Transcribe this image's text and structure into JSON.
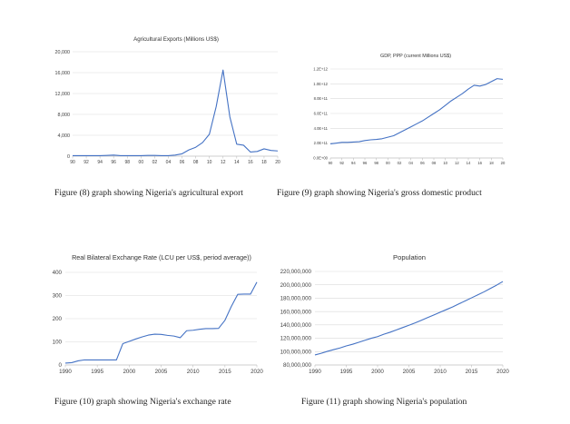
{
  "captions": {
    "fig8": "Figure (8) graph showing Nigeria's agricultural export",
    "fig9": "Figure (9) graph showing Nigeria's gross domestic product",
    "fig10": "Figure (10) graph showing Nigeria's exchange rate",
    "fig11": "Figure (11) graph showing Nigeria's population"
  },
  "line_color": "#4472c4",
  "chart_data": [
    {
      "id": "agri",
      "type": "line",
      "title": "Agricultural Exports (Millions US$)",
      "xlabel": "",
      "ylabel": "",
      "ylim": [
        0,
        20000
      ],
      "y_ticks": [
        0,
        4000,
        8000,
        12000,
        16000,
        20000
      ],
      "y_tick_labels": [
        "0",
        "4,000",
        "8,000",
        "12,000",
        "16,000",
        "20,000"
      ],
      "x_ticks": [
        1990,
        1992,
        1994,
        1996,
        1998,
        2000,
        2002,
        2004,
        2006,
        2008,
        2010,
        2012,
        2014,
        2016,
        2018,
        2020
      ],
      "x_tick_labels": [
        "90",
        "92",
        "94",
        "96",
        "98",
        "00",
        "02",
        "04",
        "06",
        "08",
        "10",
        "12",
        "14",
        "16",
        "18",
        "20"
      ],
      "grid": "horizontal",
      "x": [
        1990,
        1991,
        1992,
        1993,
        1994,
        1995,
        1996,
        1997,
        1998,
        1999,
        2000,
        2001,
        2002,
        2003,
        2004,
        2005,
        2006,
        2007,
        2008,
        2009,
        2010,
        2011,
        2012,
        2013,
        2014,
        2015,
        2016,
        2017,
        2018,
        2019,
        2020
      ],
      "values": [
        100,
        100,
        100,
        100,
        100,
        150,
        200,
        100,
        100,
        100,
        100,
        150,
        150,
        100,
        100,
        200,
        450,
        1200,
        1700,
        2600,
        4200,
        9500,
        16500,
        7500,
        2300,
        2100,
        800,
        900,
        1400,
        1100,
        1000
      ]
    },
    {
      "id": "gdp",
      "type": "line",
      "title": "GDP, PPP (current Millions US$)",
      "xlabel": "",
      "ylabel": "",
      "ylim": [
        0,
        1200000000000.0
      ],
      "y_ticks": [
        0,
        200000000000.0,
        400000000000.0,
        600000000000.0,
        800000000000.0,
        1000000000000.0,
        1200000000000.0
      ],
      "y_tick_labels": [
        "0.0E+00",
        "2.0E+11",
        "4.0E+11",
        "6.0E+11",
        "8.0E+11",
        "1.0E+12",
        "1.2E+12"
      ],
      "x_ticks": [
        1990,
        1992,
        1994,
        1996,
        1998,
        2000,
        2002,
        2004,
        2006,
        2008,
        2010,
        2012,
        2014,
        2016,
        2018,
        2020
      ],
      "x_tick_labels": [
        "90",
        "92",
        "94",
        "96",
        "98",
        "00",
        "02",
        "04",
        "06",
        "08",
        "10",
        "12",
        "14",
        "16",
        "18",
        "20"
      ],
      "grid": "horizontal",
      "x": [
        1990,
        1991,
        1992,
        1993,
        1994,
        1995,
        1996,
        1997,
        1998,
        1999,
        2000,
        2001,
        2002,
        2003,
        2004,
        2005,
        2006,
        2007,
        2008,
        2009,
        2010,
        2011,
        2012,
        2013,
        2014,
        2015,
        2016,
        2017,
        2018,
        2019,
        2020
      ],
      "values": [
        190000000000.0,
        200000000000.0,
        210000000000.0,
        210000000000.0,
        215000000000.0,
        220000000000.0,
        235000000000.0,
        245000000000.0,
        250000000000.0,
        260000000000.0,
        280000000000.0,
        300000000000.0,
        340000000000.0,
        380000000000.0,
        420000000000.0,
        460000000000.0,
        500000000000.0,
        550000000000.0,
        600000000000.0,
        650000000000.0,
        710000000000.0,
        770000000000.0,
        820000000000.0,
        870000000000.0,
        930000000000.0,
        980000000000.0,
        970000000000.0,
        990000000000.0,
        1030000000000.0,
        1070000000000.0,
        1060000000000.0
      ]
    },
    {
      "id": "exrate",
      "type": "line",
      "title": "Real Bilateral Exchange Rate (LCU per US$, period average))",
      "xlabel": "",
      "ylabel": "",
      "ylim": [
        0,
        400
      ],
      "y_ticks": [
        0,
        100,
        200,
        300,
        400
      ],
      "y_tick_labels": [
        "0",
        "100",
        "200",
        "300",
        "400"
      ],
      "x_ticks": [
        1990,
        1995,
        2000,
        2005,
        2010,
        2015,
        2020
      ],
      "x_tick_labels": [
        "1990",
        "1995",
        "2000",
        "2005",
        "2010",
        "2015",
        "2020"
      ],
      "grid": "horizontal",
      "x": [
        1990,
        1991,
        1992,
        1993,
        1994,
        1995,
        1996,
        1997,
        1998,
        1999,
        2000,
        2001,
        2002,
        2003,
        2004,
        2005,
        2006,
        2007,
        2008,
        2009,
        2010,
        2011,
        2012,
        2013,
        2014,
        2015,
        2016,
        2017,
        2018,
        2019,
        2020
      ],
      "values": [
        8,
        10,
        18,
        22,
        22,
        22,
        22,
        22,
        22,
        92,
        102,
        112,
        121,
        129,
        133,
        132,
        128,
        125,
        118,
        148,
        150,
        154,
        157,
        157,
        158,
        193,
        253,
        305,
        306,
        306,
        358
      ]
    },
    {
      "id": "pop",
      "type": "line",
      "title": "Population",
      "xlabel": "",
      "ylabel": "",
      "ylim": [
        80000000,
        220000000
      ],
      "y_ticks": [
        80000000,
        100000000,
        120000000,
        140000000,
        160000000,
        180000000,
        200000000,
        220000000
      ],
      "y_tick_labels": [
        "80,000,000",
        "100,000,000",
        "120,000,000",
        "140,000,000",
        "160,000,000",
        "180,000,000",
        "200,000,000",
        "220,000,000"
      ],
      "x_ticks": [
        1990,
        1995,
        2000,
        2005,
        2010,
        2015,
        2020
      ],
      "x_tick_labels": [
        "1990",
        "1995",
        "2000",
        "2005",
        "2010",
        "2015",
        "2020"
      ],
      "grid": "horizontal",
      "x": [
        1990,
        1991,
        1992,
        1993,
        1994,
        1995,
        1996,
        1997,
        1998,
        1999,
        2000,
        2001,
        2002,
        2003,
        2004,
        2005,
        2006,
        2007,
        2008,
        2009,
        2010,
        2011,
        2012,
        2013,
        2014,
        2015,
        2016,
        2017,
        2018,
        2019,
        2020
      ],
      "values": [
        95000000,
        97500000,
        100500000,
        103000000,
        105500000,
        108500000,
        111000000,
        114000000,
        117000000,
        120000000,
        122500000,
        126000000,
        129000000,
        132500000,
        136000000,
        139500000,
        143000000,
        147000000,
        151000000,
        155000000,
        159000000,
        163000000,
        167000000,
        171500000,
        176000000,
        180500000,
        185000000,
        189500000,
        194500000,
        199500000,
        205000000
      ]
    }
  ]
}
